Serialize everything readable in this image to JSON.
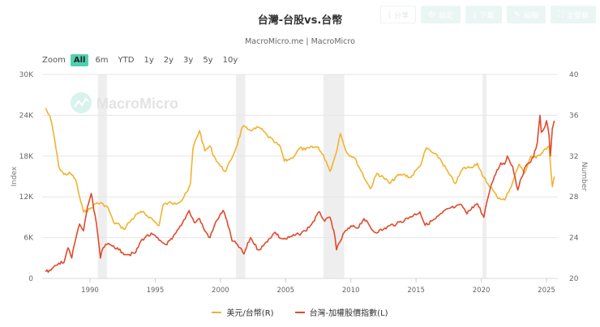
{
  "toolbar": {
    "buttons": [
      {
        "label": "分享",
        "icon": "share-icon"
      },
      {
        "label": "設定",
        "icon": "gear-icon"
      },
      {
        "label": "下載",
        "icon": "download-icon"
      },
      {
        "label": "編輯",
        "icon": "pencil-icon"
      },
      {
        "label": "全螢幕",
        "icon": "fullscreen-icon"
      }
    ]
  },
  "header": {
    "title": "台灣-台股vs.台幣",
    "subtitle": "MacroMicro.me | MacroMicro"
  },
  "range_selector": {
    "label": "Zoom",
    "buttons": [
      "All",
      "6m",
      "YTD",
      "1y",
      "2y",
      "3y",
      "5y",
      "10y"
    ],
    "active": "All"
  },
  "watermark": "MacroMicro",
  "colors": {
    "twd": "#f0b32e",
    "taiex": "#e04a2c",
    "grid": "#e6e6e6",
    "recession": "#eeeeee",
    "accent": "#4fd1b0"
  },
  "chart_data": {
    "type": "line",
    "title": "台灣-台股vs.台幣",
    "subtitle": "MacroMicro.me | MacroMicro",
    "xlabel": "",
    "x_ticks": [
      1990,
      1995,
      2000,
      2005,
      2010,
      2015,
      2020,
      2025
    ],
    "x_range": [
      1986.3,
      2025.9
    ],
    "y_left": {
      "label": "Index",
      "ticks": [
        "0",
        "6K",
        "12K",
        "18K",
        "24K",
        "30K"
      ],
      "range": [
        0,
        30000
      ]
    },
    "y_right": {
      "label": "Number",
      "ticks": [
        "20",
        "24",
        "28",
        "32",
        "36",
        "40"
      ],
      "range": [
        20,
        40
      ]
    },
    "grid": true,
    "legend_position": "bottom",
    "recession_bands": [
      [
        1990.6,
        1991.3
      ],
      [
        2001.2,
        2001.9
      ],
      [
        2007.9,
        2009.5
      ],
      [
        2020.1,
        2020.4
      ]
    ],
    "series": [
      {
        "name": "美元/台幣(R)",
        "axis": "right",
        "color": "#f0b32e",
        "x": [
          1986.6,
          1987.0,
          1987.3,
          1987.6,
          1988.0,
          1988.5,
          1988.9,
          1989.2,
          1989.5,
          1990.0,
          1990.5,
          1991.0,
          1991.4,
          1991.8,
          1992.3,
          1992.6,
          1993.0,
          1993.6,
          1994.0,
          1994.6,
          1995.0,
          1995.3,
          1995.6,
          1996.0,
          1996.5,
          1997.0,
          1997.5,
          1997.7,
          1997.9,
          1998.1,
          1998.4,
          1998.8,
          1999.2,
          1999.5,
          2000.0,
          2000.4,
          2000.8,
          2001.2,
          2001.7,
          2002.1,
          2002.5,
          2003.0,
          2003.6,
          2004.2,
          2004.6,
          2004.9,
          2005.5,
          2006.1,
          2006.5,
          2006.8,
          2007.5,
          2008.1,
          2008.4,
          2008.8,
          2009.2,
          2009.7,
          2010.3,
          2010.8,
          2011.2,
          2011.5,
          2012.0,
          2012.5,
          2013.0,
          2013.5,
          2014.0,
          2014.6,
          2015.0,
          2015.3,
          2015.8,
          2016.3,
          2016.8,
          2017.5,
          2018.0,
          2018.6,
          2019.2,
          2019.7,
          2020.1,
          2020.7,
          2021.2,
          2021.8,
          2022.2,
          2022.5,
          2022.9,
          2023.3,
          2023.8,
          2024.2,
          2024.8,
          2025.2,
          2025.35,
          2025.45,
          2025.6
        ],
        "values": [
          36.7,
          35.6,
          33.5,
          31.0,
          30.2,
          30.3,
          29.7,
          28.0,
          26.5,
          26.8,
          27.4,
          27.3,
          26.9,
          25.5,
          25.2,
          24.8,
          25.5,
          26.3,
          26.5,
          26.0,
          25.5,
          25.2,
          27.2,
          27.4,
          27.4,
          27.6,
          28.6,
          29.3,
          32.8,
          33.6,
          34.5,
          32.5,
          33.0,
          32.0,
          31.0,
          30.5,
          31.6,
          32.8,
          34.9,
          34.6,
          34.6,
          34.8,
          34.0,
          33.3,
          32.9,
          31.5,
          31.8,
          32.8,
          32.6,
          32.8,
          32.9,
          31.5,
          30.5,
          32.0,
          34.2,
          32.3,
          31.8,
          30.5,
          29.5,
          28.8,
          30.3,
          29.9,
          29.3,
          30.0,
          30.2,
          29.9,
          30.6,
          31.0,
          32.8,
          32.3,
          31.8,
          30.3,
          29.3,
          30.8,
          30.9,
          31.3,
          30.0,
          29.0,
          28.0,
          27.7,
          28.8,
          29.8,
          31.2,
          30.3,
          32.0,
          31.8,
          32.6,
          33.0,
          30.4,
          29.0,
          30.0
        ]
      },
      {
        "name": "台灣-加權股價指數(L)",
        "axis": "left",
        "color": "#e04a2c",
        "x": [
          1986.6,
          1987.0,
          1987.5,
          1987.8,
          1988.0,
          1988.3,
          1988.6,
          1988.8,
          1989.2,
          1989.5,
          1989.8,
          1990.1,
          1990.3,
          1990.5,
          1990.8,
          1991.0,
          1991.3,
          1991.8,
          1992.2,
          1992.5,
          1993.0,
          1993.5,
          1993.9,
          1994.3,
          1994.8,
          1995.3,
          1995.8,
          1996.3,
          1997.0,
          1997.6,
          1998.0,
          1998.4,
          1998.8,
          1999.2,
          1999.7,
          2000.2,
          2000.5,
          2000.9,
          2001.3,
          2001.8,
          2002.3,
          2002.9,
          2003.3,
          2003.7,
          2004.2,
          2004.6,
          2005.0,
          2005.5,
          2006.0,
          2006.5,
          2007.0,
          2007.6,
          2008.0,
          2008.4,
          2008.7,
          2008.9,
          2009.5,
          2010.2,
          2010.5,
          2011.0,
          2011.8,
          2012.5,
          2013.0,
          2013.5,
          2014.5,
          2015.3,
          2015.7,
          2016.5,
          2017.0,
          2017.5,
          2018.0,
          2018.5,
          2018.9,
          2019.3,
          2019.7,
          2020.2,
          2020.4,
          2020.6,
          2021.0,
          2021.5,
          2021.8,
          2022.0,
          2022.4,
          2022.8,
          2023.0,
          2023.5,
          2024.0,
          2024.3,
          2024.5,
          2024.6,
          2024.8,
          2025.0,
          2025.2,
          2025.3,
          2025.45,
          2025.6
        ],
        "values": [
          1000,
          1200,
          2000,
          2500,
          2300,
          4500,
          3000,
          5000,
          8000,
          7000,
          10500,
          12500,
          10000,
          8000,
          3000,
          4500,
          5000,
          4800,
          4200,
          3800,
          3500,
          3800,
          5500,
          6200,
          6500,
          5600,
          5000,
          5800,
          7800,
          10000,
          8200,
          8800,
          7000,
          6000,
          8500,
          10000,
          8500,
          5500,
          5000,
          3600,
          6000,
          4200,
          4800,
          5800,
          6800,
          5900,
          5800,
          6200,
          6500,
          7000,
          8000,
          9800,
          8400,
          9000,
          7000,
          4200,
          6800,
          7800,
          7400,
          8800,
          6800,
          7200,
          7800,
          8000,
          9000,
          9800,
          7800,
          8800,
          9600,
          10300,
          10500,
          10800,
          9500,
          10500,
          11000,
          9000,
          11000,
          12500,
          15000,
          17000,
          16800,
          18000,
          16500,
          13000,
          14500,
          16800,
          17800,
          20000,
          24000,
          21500,
          22000,
          23200,
          21000,
          18000,
          22000,
          23200
        ]
      }
    ]
  },
  "legend": [
    {
      "label": "美元/台幣(R)",
      "color": "#f0b32e"
    },
    {
      "label": "台灣-加權股價指數(L)",
      "color": "#e04a2c"
    }
  ]
}
